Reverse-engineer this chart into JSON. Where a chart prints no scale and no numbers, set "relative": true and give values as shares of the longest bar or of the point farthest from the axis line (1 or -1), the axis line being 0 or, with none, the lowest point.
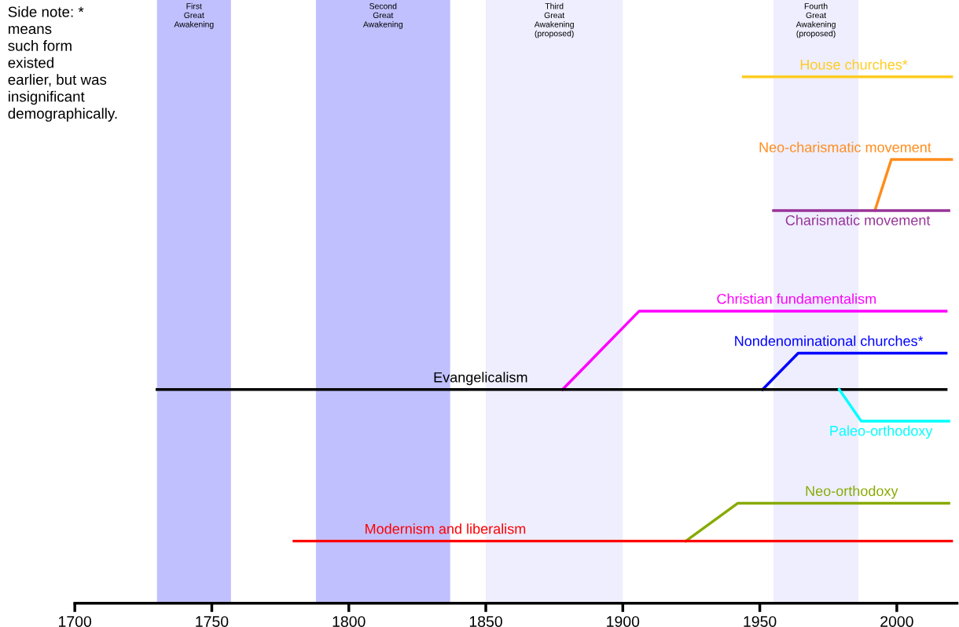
{
  "chart_data": {
    "type": "line",
    "relative": true,
    "tick_labels": "x",
    "grid": false,
    "legend": false,
    "marker": "none",
    "line_style": "solid",
    "xlim": [
      1700,
      2022
    ],
    "xticks": [
      1700,
      1750,
      1800,
      1850,
      1900,
      1950,
      2000
    ],
    "bands": [
      {
        "axis": "x",
        "from": 1730,
        "to": 1757,
        "label": "First\nGreat\nAwakening",
        "color": "#c0c0ff"
      },
      {
        "axis": "x",
        "from": 1788,
        "to": 1837,
        "label": "Second\nGreat\nAwakening",
        "color": "#c0c0ff"
      },
      {
        "axis": "x",
        "from": 1850,
        "to": 1900,
        "label": "Third\nGreat\nAwakening\n(proposed)",
        "color": "#eeeeff"
      },
      {
        "axis": "x",
        "from": 1955,
        "to": 1986,
        "label": "Fourth\nGreat\nAwakening\n(proposed)",
        "color": "#eeeeff"
      }
    ],
    "series": [
      {
        "name": "House churches*",
        "color": "#ffcc22",
        "x": [
          1944,
          2020
        ],
        "values": [
          1.0,
          1.0
        ]
      },
      {
        "name": "Neo-charismatic movement",
        "color": "#ff8c1a",
        "x": [
          1992,
          1998,
          2020
        ],
        "values": [
          0.746,
          0.843,
          0.843
        ]
      },
      {
        "name": "Charismatic movement",
        "color": "#993399",
        "x": [
          1955,
          2019
        ],
        "values": [
          0.746,
          0.746
        ]
      },
      {
        "name": "Christian fundamentalism",
        "color": "#ff00ff",
        "x": [
          1878,
          1906,
          2018
        ],
        "values": [
          0.406,
          0.555,
          0.555
        ]
      },
      {
        "name": "Nondenominational churches*",
        "color": "#0000ff",
        "x": [
          1951,
          1964,
          2018
        ],
        "values": [
          0.406,
          0.475,
          0.475
        ]
      },
      {
        "name": "Evangelicalism",
        "color": "#000000",
        "x": [
          1730,
          2018
        ],
        "values": [
          0.406,
          0.406
        ]
      },
      {
        "name": "Paleo-orthodoxy",
        "color": "#00ffff",
        "x": [
          1979,
          1987,
          2019
        ],
        "values": [
          0.406,
          0.346,
          0.346
        ]
      },
      {
        "name": "Neo-orthodoxy",
        "color": "#88aa00",
        "x": [
          1923,
          1942,
          2019
        ],
        "values": [
          0.118,
          0.19,
          0.19
        ]
      },
      {
        "name": "Modernism and liberalism",
        "color": "#ff0000",
        "x": [
          1780,
          2020
        ],
        "values": [
          0.118,
          0.118
        ]
      }
    ],
    "annotations": [
      "Side note: *\nmeans\nsuch form\nexisted\nearlier, but was\ninsignificant\ndemographically."
    ]
  }
}
